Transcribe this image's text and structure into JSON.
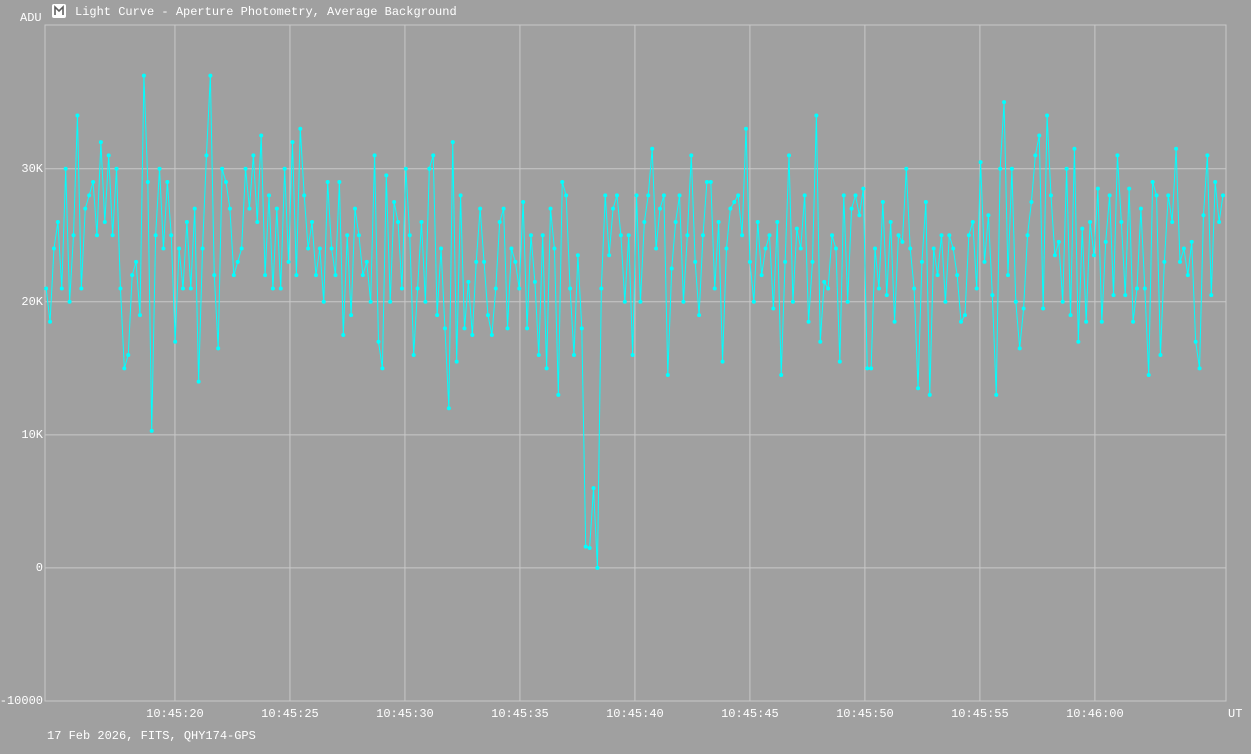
{
  "chart_data": {
    "type": "line",
    "title": "Light Curve - Aperture Photometry, Average Background",
    "ylabel": "ADU",
    "xlabel": "UT",
    "footer": "17 Feb 2026, FITS, QHY174-GPS",
    "color": "#00ffff",
    "grid": true,
    "xlim": [
      14.35,
      65.7
    ],
    "xticks": [
      {
        "value": 20,
        "label": "10:45:20"
      },
      {
        "value": 25,
        "label": "10:45:25"
      },
      {
        "value": 30,
        "label": "10:45:30"
      },
      {
        "value": 35,
        "label": "10:45:35"
      },
      {
        "value": 40,
        "label": "10:45:40"
      },
      {
        "value": 45,
        "label": "10:45:45"
      },
      {
        "value": 50,
        "label": "10:45:50"
      },
      {
        "value": 55,
        "label": "10:45:55"
      },
      {
        "value": 60,
        "label": "10:46:00"
      }
    ],
    "ylim": [
      -10000,
      40800
    ],
    "yticks": [
      -10000,
      0,
      {
        "value": 10000,
        "label": "10K"
      },
      {
        "value": 20000,
        "label": "20K"
      },
      {
        "value": 30000,
        "label": "30K"
      }
    ],
    "x": [
      14.4,
      14.57,
      14.74,
      14.91,
      15.08,
      15.25,
      15.42,
      15.59,
      15.76,
      15.93,
      16.1,
      16.27,
      16.44,
      16.61,
      16.78,
      16.95,
      17.12,
      17.29,
      17.46,
      17.63,
      17.8,
      17.97,
      18.14,
      18.31,
      18.48,
      18.65,
      18.82,
      18.99,
      19.16,
      19.33,
      19.5,
      19.67,
      19.84,
      20.01,
      20.18,
      20.35,
      20.52,
      20.69,
      20.86,
      21.03,
      21.2,
      21.37,
      21.54,
      21.71,
      21.88,
      22.05,
      22.22,
      22.39,
      22.56,
      22.73,
      22.9,
      23.07,
      23.24,
      23.41,
      23.58,
      23.75,
      23.92,
      24.09,
      24.26,
      24.43,
      24.6,
      24.77,
      24.94,
      25.11,
      25.28,
      25.45,
      25.62,
      25.79,
      25.96,
      26.13,
      26.3,
      26.47,
      26.64,
      26.81,
      26.98,
      27.15,
      27.32,
      27.49,
      27.66,
      27.83,
      28,
      28.17,
      28.34,
      28.51,
      28.68,
      28.85,
      29.02,
      29.19,
      29.36,
      29.53,
      29.7,
      29.87,
      30.04,
      30.21,
      30.38,
      30.55,
      30.72,
      30.89,
      31.06,
      31.23,
      31.4,
      31.57,
      31.74,
      31.91,
      32.08,
      32.25,
      32.42,
      32.59,
      32.76,
      32.93,
      33.1,
      33.27,
      33.44,
      33.61,
      33.78,
      33.95,
      34.12,
      34.29,
      34.46,
      34.63,
      34.8,
      34.97,
      35.14,
      35.31,
      35.48,
      35.65,
      35.82,
      35.99,
      36.16,
      36.33,
      36.5,
      36.67,
      36.84,
      37.01,
      37.18,
      37.35,
      37.52,
      37.69,
      37.86,
      38.03,
      38.2,
      38.37,
      38.54,
      38.71,
      38.88,
      39.05,
      39.22,
      39.39,
      39.56,
      39.73,
      39.9,
      40.07,
      40.24,
      40.41,
      40.58,
      40.75,
      40.92,
      41.09,
      41.26,
      41.43,
      41.6,
      41.77,
      41.94,
      42.11,
      42.28,
      42.45,
      42.62,
      42.79,
      42.96,
      43.13,
      43.3,
      43.47,
      43.64,
      43.81,
      43.98,
      44.15,
      44.32,
      44.49,
      44.66,
      44.83,
      45,
      45.17,
      45.34,
      45.51,
      45.68,
      45.85,
      46.02,
      46.19,
      46.36,
      46.53,
      46.7,
      46.87,
      47.04,
      47.21,
      47.38,
      47.55,
      47.72,
      47.89,
      48.06,
      48.23,
      48.4,
      48.57,
      48.74,
      48.91,
      49.08,
      49.25,
      49.42,
      49.59,
      49.76,
      49.93,
      50.1,
      50.27,
      50.44,
      50.61,
      50.78,
      50.95,
      51.12,
      51.29,
      51.46,
      51.63,
      51.8,
      51.97,
      52.14,
      52.31,
      52.48,
      52.65,
      52.82,
      52.99,
      53.16,
      53.33,
      53.5,
      53.67,
      53.84,
      54.01,
      54.18,
      54.35,
      54.52,
      54.69,
      54.86,
      55.03,
      55.2,
      55.37,
      55.54,
      55.71,
      55.88,
      56.05,
      56.22,
      56.39,
      56.56,
      56.73,
      56.9,
      57.07,
      57.24,
      57.41,
      57.58,
      57.75,
      57.92,
      58.09,
      58.26,
      58.43,
      58.6,
      58.77,
      58.94,
      59.11,
      59.28,
      59.45,
      59.62,
      59.79,
      59.96,
      60.13,
      60.3,
      60.47,
      60.64,
      60.81,
      60.98,
      61.15,
      61.32,
      61.49,
      61.66,
      61.83,
      62,
      62.17,
      62.34,
      62.51,
      62.68,
      62.85,
      63.02,
      63.19,
      63.36,
      63.53,
      63.7,
      63.87,
      64.04,
      64.21,
      64.38,
      64.55,
      64.72,
      64.89,
      65.06,
      65.23,
      65.4,
      65.57
    ],
    "values": [
      21000,
      18500,
      24000,
      26000,
      21000,
      30000,
      20000,
      25000,
      34000,
      21000,
      27000,
      28000,
      29000,
      25000,
      32000,
      26000,
      31000,
      25000,
      30000,
      21000,
      15000,
      16000,
      22000,
      23000,
      19000,
      37000,
      29000,
      10300,
      25000,
      30000,
      24000,
      29000,
      25000,
      17000,
      24000,
      21000,
      26000,
      21000,
      27000,
      14000,
      24000,
      31000,
      37000,
      22000,
      16500,
      30000,
      29000,
      27000,
      22000,
      23000,
      24000,
      30000,
      27000,
      31000,
      26000,
      32500,
      22000,
      28000,
      21000,
      27000,
      21000,
      30000,
      23000,
      32000,
      22000,
      33000,
      28000,
      24000,
      26000,
      22000,
      24000,
      20000,
      29000,
      24000,
      22000,
      29000,
      17500,
      25000,
      19000,
      27000,
      25000,
      22000,
      23000,
      20000,
      31000,
      17000,
      15000,
      29500,
      20000,
      27500,
      26000,
      21000,
      30000,
      25000,
      16000,
      21000,
      26000,
      20000,
      30000,
      31000,
      19000,
      24000,
      18000,
      12000,
      32000,
      15500,
      28000,
      18000,
      21500,
      17500,
      23000,
      27000,
      23000,
      19000,
      17500,
      21000,
      26000,
      27000,
      18000,
      24000,
      23000,
      21000,
      27500,
      18000,
      25000,
      21500,
      16000,
      25000,
      15000,
      27000,
      24000,
      13000,
      29000,
      28000,
      21000,
      16000,
      23500,
      18000,
      1600,
      1500,
      6000,
      0,
      21000,
      28000,
      23500,
      27000,
      28000,
      25000,
      20000,
      25000,
      16000,
      28000,
      20000,
      26000,
      28000,
      31500,
      24000,
      27000,
      28000,
      14500,
      22500,
      26000,
      28000,
      20000,
      25000,
      31000,
      23000,
      19000,
      25000,
      29000,
      29000,
      21000,
      26000,
      15500,
      24000,
      27000,
      27500,
      28000,
      25000,
      33000,
      23000,
      20000,
      26000,
      22000,
      24000,
      25000,
      19500,
      26000,
      14500,
      23000,
      31000,
      20000,
      25500,
      24000,
      28000,
      18500,
      23000,
      34000,
      17000,
      21500,
      21000,
      25000,
      24000,
      15500,
      28000,
      20000,
      27000,
      28000,
      26500,
      28500,
      15000,
      15000,
      24000,
      21000,
      27500,
      20500,
      26000,
      18500,
      25000,
      24500,
      30000,
      24000,
      21000,
      13500,
      23000,
      27500,
      13000,
      24000,
      22000,
      25000,
      20000,
      25000,
      24000,
      22000,
      18500,
      19000,
      25000,
      26000,
      21000,
      30500,
      23000,
      26500,
      20500,
      13000,
      30000,
      35000,
      22000,
      30000,
      20000,
      16500,
      19500,
      25000,
      27500,
      31000,
      32500,
      19500,
      34000,
      28000,
      23500,
      24500,
      20000,
      30000,
      19000,
      31500,
      17000,
      25500,
      18500,
      26000,
      23500,
      28500,
      18500,
      24500,
      28000,
      20500,
      31000,
      26000,
      20500,
      28500,
      18500,
      21000,
      27000,
      21000,
      14500,
      29000,
      28000,
      16000,
      23000,
      28000,
      26000,
      31500,
      23000,
      24000,
      22000,
      24500,
      17000,
      15000,
      26500,
      31000,
      20500,
      29000,
      26000,
      28000
    ]
  }
}
